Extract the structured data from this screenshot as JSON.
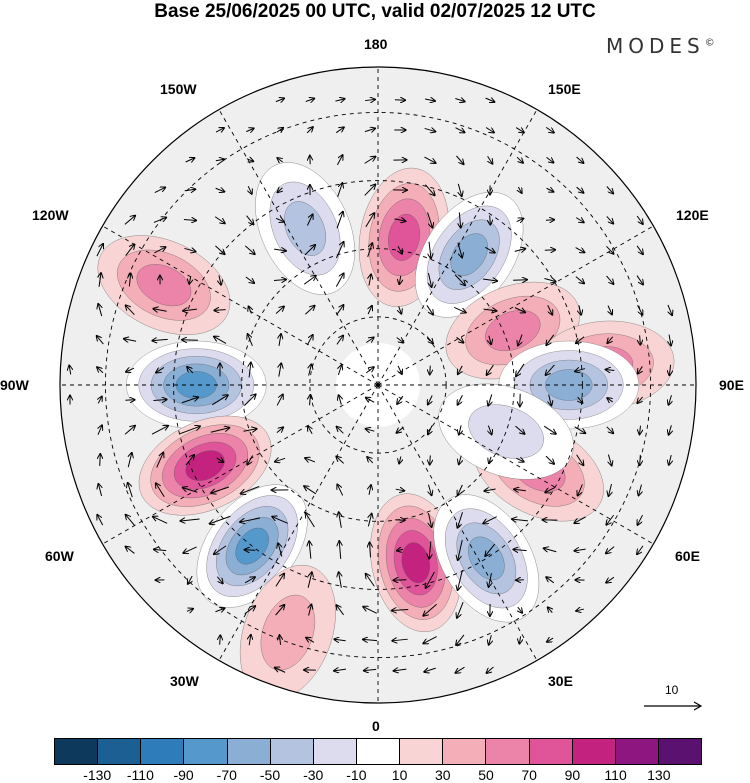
{
  "title": "Base 25/06/2025 00 UTC, valid 02/07/2025 12 UTC",
  "logo": "MODES",
  "logo_mark": "©",
  "longitude_labels": {
    "top": "180",
    "bottom": "0",
    "left": "90W",
    "right": "90E",
    "upper_left_1": "150W",
    "upper_left_2": "120W",
    "lower_left_1": "60W",
    "lower_left_2": "30W",
    "upper_right_1": "150E",
    "upper_right_2": "120E",
    "lower_right_1": "60E",
    "lower_right_2": "30E"
  },
  "reference_vector": {
    "label": "10"
  },
  "colorbar": {
    "colors": [
      "#0d3a5c",
      "#1c5f92",
      "#2f7cbb",
      "#5498cc",
      "#8aaed4",
      "#b4c3e0",
      "#dcdcee",
      "#ffffff",
      "#f8d4d4",
      "#f3aeb8",
      "#ec84aa",
      "#e05499",
      "#c3237f",
      "#8e1681",
      "#5a1170"
    ],
    "ticks": [
      "-130",
      "-110",
      "-90",
      "-70",
      "-50",
      "-30",
      "-10",
      "10",
      "30",
      "50",
      "70",
      "90",
      "110",
      "130"
    ]
  },
  "anomaly_centers": [
    {
      "lon": 170,
      "lat": 57,
      "value": 70
    },
    {
      "lon": -155,
      "lat": 52,
      "value": -50
    },
    {
      "lon": 145,
      "lat": 55,
      "value": -60
    },
    {
      "lon": -115,
      "lat": 38,
      "value": 50
    },
    {
      "lon": 112,
      "lat": 58,
      "value": 45
    },
    {
      "lon": 95,
      "lat": 40,
      "value": 40
    },
    {
      "lon": -90,
      "lat": 50,
      "value": -80
    },
    {
      "lon": 90,
      "lat": 48,
      "value": -70
    },
    {
      "lon": -65,
      "lat": 48,
      "value": 95
    },
    {
      "lon": 62,
      "lat": 50,
      "value": 55
    },
    {
      "lon": -38,
      "lat": 45,
      "value": -80
    },
    {
      "lon": 12,
      "lat": 50,
      "value": 90
    },
    {
      "lon": 32,
      "lat": 45,
      "value": -65
    },
    {
      "lon": -20,
      "lat": 32,
      "value": 30
    },
    {
      "lon": 70,
      "lat": 60,
      "value": -20
    }
  ]
}
